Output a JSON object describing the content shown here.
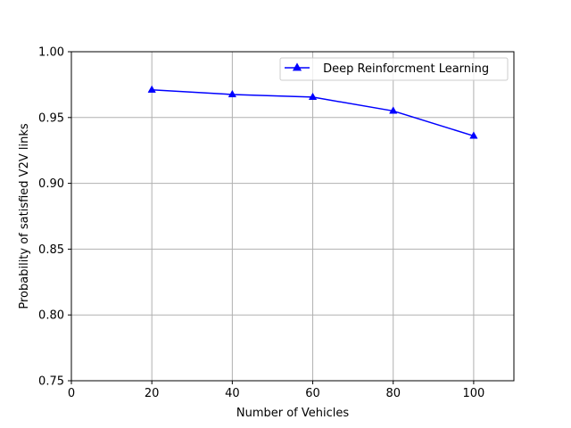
{
  "chart_data": {
    "type": "line",
    "title": "",
    "xlabel": "Number of Vehicles",
    "ylabel": "Probability of satisfied V2V links",
    "xlim": [
      0,
      110
    ],
    "ylim": [
      0.75,
      1.0
    ],
    "xticks": [
      0,
      20,
      40,
      60,
      80,
      100
    ],
    "xtick_labels": [
      "0",
      "20",
      "40",
      "60",
      "80",
      "100"
    ],
    "yticks": [
      0.75,
      0.8,
      0.85,
      0.9,
      0.95,
      1.0
    ],
    "ytick_labels": [
      "0.75",
      "0.80",
      "0.85",
      "0.90",
      "0.95",
      "1.00"
    ],
    "grid": true,
    "legend_position": "top-right",
    "series": [
      {
        "name": " Deep Reinforcment Learning",
        "color": "#0000ff",
        "marker": "triangle-up",
        "x": [
          20,
          40,
          60,
          80,
          100
        ],
        "y": [
          0.971,
          0.9675,
          0.9655,
          0.955,
          0.936
        ]
      }
    ]
  }
}
